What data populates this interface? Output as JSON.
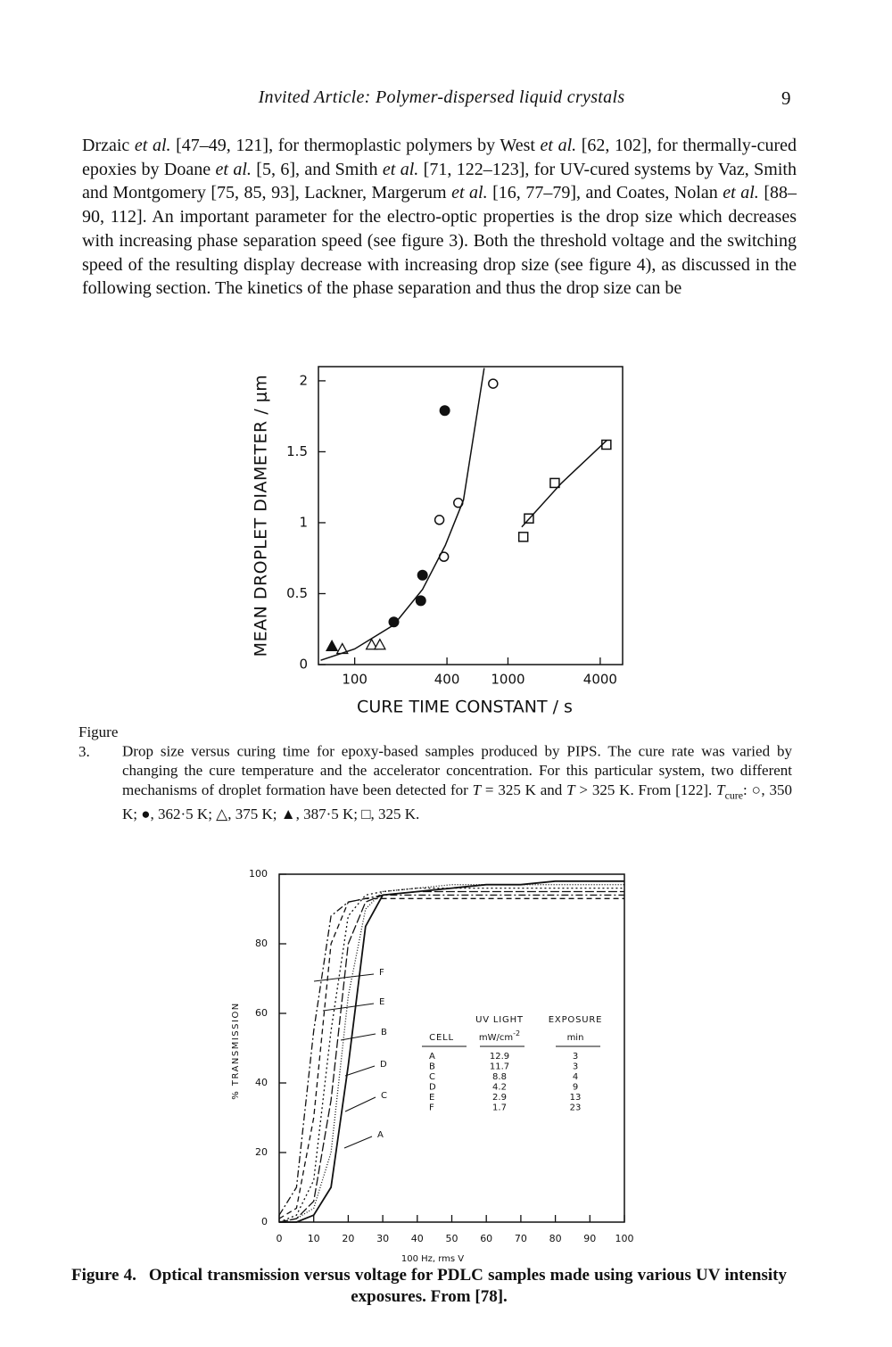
{
  "header": {
    "title": "Invited Article: Polymer-dispersed liquid crystals",
    "page": "9"
  },
  "body": {
    "segments": [
      {
        "text": "Drzaic "
      },
      {
        "text": "et al.",
        "italic": true
      },
      {
        "text": " [47–49, 121], for thermoplastic polymers by West "
      },
      {
        "text": "et al.",
        "italic": true
      },
      {
        "text": " [62, 102], for thermally-cured epoxies by Doane "
      },
      {
        "text": "et al.",
        "italic": true
      },
      {
        "text": " [5, 6], and Smith "
      },
      {
        "text": "et al.",
        "italic": true
      },
      {
        "text": " [71, 122–123], for UV-cured systems by Vaz, Smith and Montgomery [75, 85, 93], Lackner, Margerum "
      },
      {
        "text": "et al.",
        "italic": true
      },
      {
        "text": " [16, 77–79], and Coates, Nolan "
      },
      {
        "text": "et al.",
        "italic": true
      },
      {
        "text": " [88–90, 112]. An important parameter for the electro-optic properties is the drop size which decreases with increasing phase separation speed (see figure 3). Both the threshold voltage and the switching speed of the resulting display decrease with increasing drop size (see figure 4), as discussed in the following section. The kinetics of the phase separation and thus the drop size can be"
      }
    ]
  },
  "chart_data": [
    {
      "type": "scatter",
      "y_label": "MEAN DROPLET DIAMETER / μm",
      "x_label": "CURE TIME CONSTANT / s",
      "xscale": "log",
      "xlim": [
        58,
        5600
      ],
      "ylim": [
        0,
        2.1
      ],
      "xticks": [
        100,
        400,
        1000,
        4000
      ],
      "yticks": [
        0,
        0.5,
        1,
        1.5,
        2
      ],
      "series": [
        {
          "marker": "open-circle",
          "color": "#111",
          "x": [
            800,
            357,
            474,
            382
          ],
          "values": [
            1.98,
            1.02,
            1.14,
            0.76
          ]
        },
        {
          "marker": "filled-circle",
          "color": "#111",
          "x": [
            387,
            277,
            270,
            180
          ],
          "values": [
            1.79,
            0.63,
            0.45,
            0.3
          ]
        },
        {
          "marker": "open-triangle",
          "color": "#111",
          "x": [
            83,
            129,
            146
          ],
          "values": [
            0.11,
            0.14,
            0.14
          ]
        },
        {
          "marker": "filled-triangle",
          "color": "#111",
          "x": [
            71
          ],
          "values": [
            0.13
          ]
        },
        {
          "marker": "open-square",
          "color": "#111",
          "x": [
            4390,
            2020,
            1370,
            1260
          ],
          "values": [
            1.55,
            1.28,
            1.03,
            0.9
          ]
        },
        {
          "line": true,
          "color": "#111",
          "x": [
            60,
            100,
            180,
            277,
            390,
            513,
            700
          ],
          "values": [
            0.03,
            0.11,
            0.28,
            0.53,
            0.84,
            1.16,
            2.09
          ]
        },
        {
          "line": true,
          "color": "#111",
          "x": [
            1230,
            2240,
            4410
          ],
          "values": [
            0.97,
            1.28,
            1.58
          ]
        }
      ],
      "caption": {
        "label": "Figure 3.",
        "segments": [
          {
            "text": "Drop size versus curing time for epoxy-based samples produced by PIPS. The cure rate was varied by changing the cure temperature and the accelerator concentration. For this particular system, two different mechanisms of droplet formation have been detected for "
          },
          {
            "text": "T",
            "italic": true
          },
          {
            "text": " = 325 K and "
          },
          {
            "text": "T",
            "italic": true
          },
          {
            "text": " > 325 K. From [122]. "
          },
          {
            "text": "T",
            "italic": true
          },
          {
            "text": "cure",
            "sub": true
          },
          {
            "text": ": ○, 350 K; ●, 362·5 K; △, 375 K; ▲, 387·5 K; □, 325 K."
          }
        ]
      }
    },
    {
      "type": "line",
      "y_label": "% TRANSMISSION",
      "x_label": "100 Hz, rms V",
      "xlim": [
        0,
        100
      ],
      "ylim": [
        0,
        100
      ],
      "xticks": [
        0,
        10,
        20,
        30,
        40,
        50,
        60,
        70,
        80,
        90,
        100
      ],
      "yticks": [
        0,
        20,
        40,
        60,
        80,
        100
      ],
      "x": [
        0,
        5,
        10,
        15,
        20,
        25,
        30,
        40,
        50,
        60,
        70,
        80,
        90,
        100
      ],
      "series": [
        {
          "name": "A",
          "color": "#111",
          "dash": "solid",
          "values": [
            0,
            0,
            2,
            10,
            45,
            85,
            94,
            95,
            96,
            97,
            97,
            98,
            98,
            98
          ]
        },
        {
          "name": "B",
          "color": "#111",
          "dash": "dotted",
          "values": [
            0,
            2,
            12,
            55,
            88,
            94,
            95,
            96,
            96,
            96,
            96,
            96,
            96,
            96
          ]
        },
        {
          "name": "C",
          "color": "#111",
          "dash": "fine-dotted",
          "values": [
            0,
            1,
            4,
            20,
            65,
            90,
            95,
            96,
            97,
            97,
            97,
            97,
            97,
            97
          ]
        },
        {
          "name": "D",
          "color": "#111",
          "dash": "long-dash",
          "values": [
            0,
            1,
            6,
            35,
            80,
            92,
            94,
            95,
            95,
            95,
            95,
            95,
            95,
            95
          ]
        },
        {
          "name": "E",
          "color": "#111",
          "dash": "dashed",
          "values": [
            1,
            4,
            30,
            80,
            92,
            93,
            93,
            93,
            93,
            93,
            93,
            93,
            93,
            93
          ]
        },
        {
          "name": "F",
          "color": "#111",
          "dash": "dash-dot",
          "values": [
            2,
            10,
            55,
            88,
            92,
            93,
            94,
            94,
            94,
            94,
            94,
            94,
            94,
            94
          ]
        }
      ],
      "table": {
        "columns": [
          {
            "title": "CELL"
          },
          {
            "title": "UV LIGHT",
            "unit": "mW/cm",
            "unit_sup": "-2"
          },
          {
            "title": "EXPOSURE",
            "unit": "min"
          }
        ],
        "rows": [
          [
            "A",
            12.9,
            3
          ],
          [
            "B",
            11.7,
            3
          ],
          [
            "C",
            8.8,
            4
          ],
          [
            "D",
            4.2,
            9
          ],
          [
            "E",
            2.9,
            13
          ],
          [
            "F",
            1.7,
            23
          ]
        ]
      },
      "caption": {
        "label": "Figure 4.",
        "segments": [
          {
            "text": "Optical transmission versus voltage for PDLC samples made using various UV intensity exposures. From [78]."
          }
        ]
      }
    }
  ]
}
